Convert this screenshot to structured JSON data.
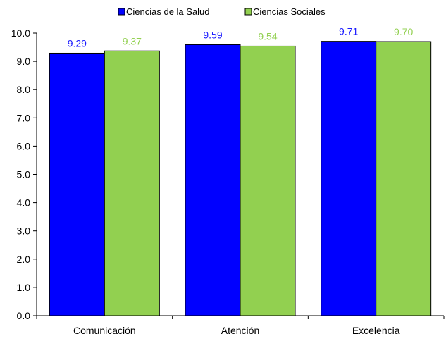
{
  "chart_data": {
    "type": "bar",
    "title": "",
    "xlabel": "",
    "ylabel": "",
    "categories": [
      "Comunicación",
      "Atención",
      "Excelencia"
    ],
    "series": [
      {
        "name": "Ciencias de la Salud",
        "values": [
          9.29,
          9.59,
          9.71
        ],
        "color": "#0000ff",
        "label_color": "#1a1aff"
      },
      {
        "name": "Ciencias Sociales",
        "values": [
          9.37,
          9.54,
          9.7
        ],
        "color": "#92d050",
        "label_color": "#92d050"
      }
    ],
    "ylim": [
      0,
      10
    ],
    "yticks": [
      0,
      1,
      2,
      3,
      4,
      5,
      6,
      7,
      8,
      9,
      10
    ],
    "ytick_labels": [
      "0.0",
      "1.0",
      "2.0",
      "3.0",
      "4.0",
      "5.0",
      "6.0",
      "7.0",
      "8.0",
      "9.0",
      "10.0"
    ],
    "data_labels": [
      [
        "9.29",
        "9.59",
        "9.71"
      ],
      [
        "9.37",
        "9.54",
        "9.70"
      ]
    ],
    "grid": false,
    "legend_position": "top-center",
    "colors": {
      "axis": "#000000",
      "bar_outline": "#000000",
      "background": "#ffffff"
    }
  }
}
